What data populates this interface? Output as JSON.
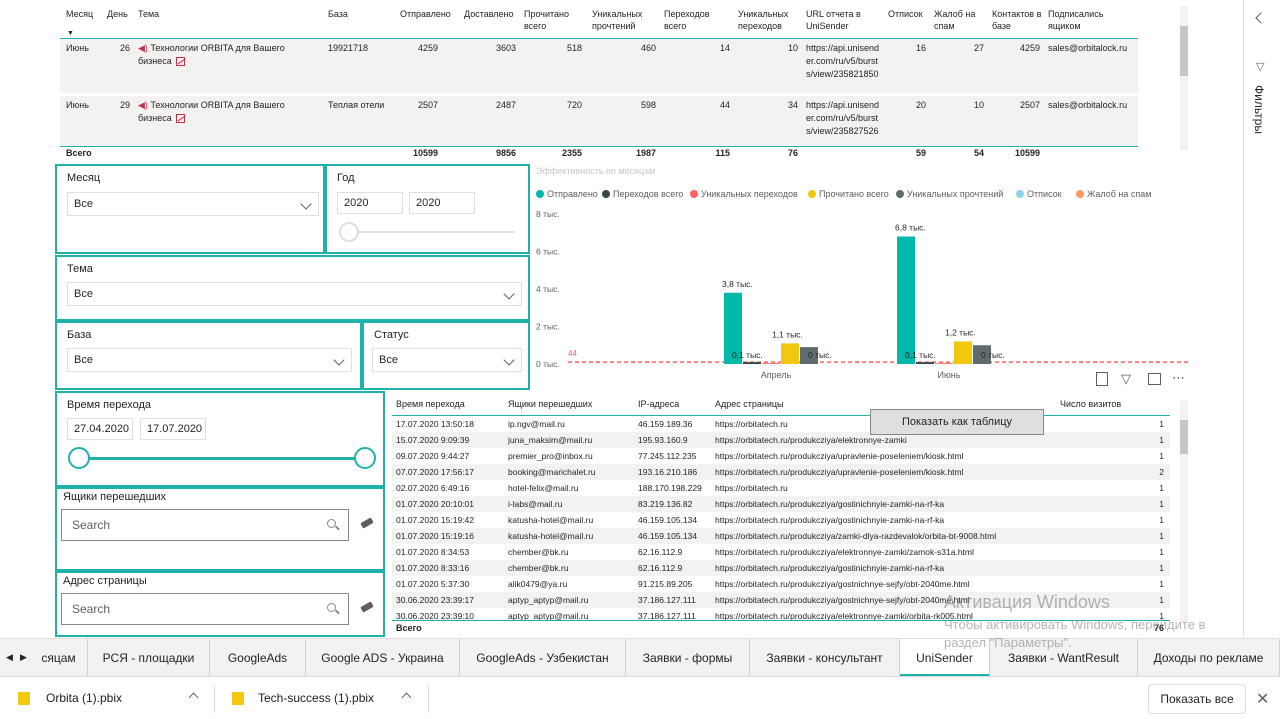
{
  "top_table": {
    "headers": [
      "Месяц",
      "День",
      "Тема",
      "База",
      "Отправлено",
      "Доставлено",
      "Прочитано всего",
      "Уникальных прочтений",
      "Переходов всего",
      "Уникальных переходов",
      "URL отчета в UniSender",
      "Отписок",
      "Жалоб на спам",
      "Контактов в базе",
      "Подписались ящиком"
    ],
    "rows": [
      {
        "month": "Июнь",
        "day": "26",
        "topic": "Технологии ORBITA для Вашего бизнеса",
        "base": "19921718",
        "sent": "4259",
        "delivered": "3603",
        "read_total": "518",
        "unique_reads": "460",
        "clicks_total": "14",
        "unique_clicks": "10",
        "url": "https://api.unisender.com/ru/v5/bursts/view/235821850",
        "unsub": "16",
        "spam": "27",
        "contacts": "4259",
        "subscribed": "sales@orbitalock.ru"
      },
      {
        "month": "Июнь",
        "day": "29",
        "topic": "Технологии ORBITA для Вашего бизнеса",
        "base": "Теплая отели",
        "sent": "2507",
        "delivered": "2487",
        "read_total": "720",
        "unique_reads": "598",
        "clicks_total": "44",
        "unique_clicks": "34",
        "url": "https://api.unisender.com/ru/v5/bursts/view/235827526",
        "unsub": "20",
        "spam": "10",
        "contacts": "2507",
        "subscribed": "sales@orbitalock.ru"
      }
    ],
    "totals": {
      "label": "Всего",
      "sent": "10599",
      "delivered": "9856",
      "read_total": "2355",
      "unique_reads": "1987",
      "clicks_total": "115",
      "unique_clicks": "76",
      "unsub": "59",
      "spam": "54",
      "contacts": "10599"
    }
  },
  "slicers": {
    "month": {
      "title": "Месяц",
      "value": "Все"
    },
    "year": {
      "title": "Год",
      "from": "2020",
      "to": "2020"
    },
    "topic": {
      "title": "Тема",
      "value": "Все"
    },
    "base": {
      "title": "База",
      "value": "Все"
    },
    "status": {
      "title": "Статус",
      "value": "Все"
    },
    "click_time": {
      "title": "Время перехода",
      "from": "27.04.2020",
      "to": "17.07.2020"
    },
    "mailboxes": {
      "title": "Ящики перешедших",
      "placeholder": "Search"
    },
    "page_address": {
      "title": "Адрес страницы",
      "placeholder": "Search"
    }
  },
  "chart_data": {
    "type": "bar",
    "title": "Эффективность по месяцам",
    "categories": [
      "Апрель",
      "Июнь"
    ],
    "series": [
      {
        "name": "Отправлено",
        "color": "#01b8aa",
        "values": [
          3800,
          6800
        ]
      },
      {
        "name": "Переходов всего",
        "color": "#374649",
        "values": [
          100,
          100
        ]
      },
      {
        "name": "Уникальных переходов",
        "color": "#fd625e",
        "values": [
          44,
          44
        ]
      },
      {
        "name": "Прочитано всего",
        "color": "#f2c80f",
        "values": [
          1100,
          1200
        ]
      },
      {
        "name": "Уникальных прочтений",
        "color": "#5f6b6d",
        "values": [
          900,
          1000
        ]
      },
      {
        "name": "Отписок",
        "color": "#8ad4eb",
        "values": [
          0,
          0
        ]
      },
      {
        "name": "Жалоб на спам",
        "color": "#fe9666",
        "values": [
          0,
          0
        ]
      }
    ],
    "data_labels": {
      "Апрель": [
        "3,8 тыс.",
        "0,1 тыс.",
        "1,1 тыс.",
        "0 тыс."
      ],
      "Июнь": [
        "6,8 тыс.",
        "0,1 тыс.",
        "1,2 тыс.",
        "0 тыс."
      ]
    },
    "y_ticks": [
      "0 тыс.",
      "2 тыс.",
      "4 тыс.",
      "6 тыс.",
      "8 тыс."
    ],
    "ylim": [
      0,
      8000
    ],
    "ref_line_label": "44",
    "grid": false,
    "legend_position": "top-left"
  },
  "bottom_table": {
    "headers": [
      "Время перехода",
      "Ящики перешедших",
      "IP-адреса",
      "Адрес страницы",
      "Число визитов"
    ],
    "rows": [
      [
        "17.07.2020 13:50:18",
        "ip.ngv@mail.ru",
        "46.159.189.36",
        "https://orbitatech.ru",
        "1"
      ],
      [
        "15.07.2020 9:09:39",
        "juna_maksim@mail.ru",
        "195.93.160.9",
        "https://orbitatech.ru/produkcziya/elektronnye-zamki",
        "1"
      ],
      [
        "09.07.2020 9:44:27",
        "premier_pro@inbox.ru",
        "77.245.112.235",
        "https://orbitatech.ru/produkcziya/upravlenie-poseleniem/kiosk.html",
        "1"
      ],
      [
        "07.07.2020 17:56:17",
        "booking@marichalet.ru",
        "193.16.210.186",
        "https://orbitatech.ru/produkcziya/upravlenie-poseleniem/kiosk.html",
        "2"
      ],
      [
        "02.07.2020 6:49:16",
        "hotel-felix@mail.ru",
        "188.170.198.229",
        "https://orbitatech.ru",
        "1"
      ],
      [
        "01.07.2020 20:10:01",
        "i-labs@mail.ru",
        "83.219.136.82",
        "https://orbitatech.ru/produkcziya/gostinichnyie-zamki-na-rf-ka",
        "1"
      ],
      [
        "01.07.2020 15:19:42",
        "katusha-hotel@mail.ru",
        "46.159.105.134",
        "https://orbitatech.ru/produkcziya/gostinichnyie-zamki-na-rf-ka",
        "1"
      ],
      [
        "01.07.2020 15:19:16",
        "katusha-hotel@mail.ru",
        "46.159.105.134",
        "https://orbitatech.ru/produkcziya/zamki-dlya-razdevalok/orbita-bt-9008.html",
        "1"
      ],
      [
        "01.07.2020 8:34:53",
        "chember@bk.ru",
        "62.16.112.9",
        "https://orbitatech.ru/produkcziya/elektronnye-zamki/zamok-s31a.html",
        "1"
      ],
      [
        "01.07.2020 8:33:16",
        "chember@bk.ru",
        "62.16.112.9",
        "https://orbitatech.ru/produkcziya/gostinichnyie-zamki-na-rf-ka",
        "1"
      ],
      [
        "01.07.2020 5:37:30",
        "alik0479@ya.ru",
        "91.215.89.205",
        "https://orbitatech.ru/produkcziya/gostnichnye-sejfy/obt-2040me.html",
        "1"
      ],
      [
        "30.06.2020 23:39:17",
        "aptyp_aptyp@mail.ru",
        "37.186.127.111",
        "https://orbitatech.ru/produkcziya/gostnichnye-sejfy/obt-2040me.html",
        "1"
      ],
      [
        "30.06.2020 23:39:10",
        "aptyp_aptyp@mail.ru",
        "37.186.127.111",
        "https://orbitatech.ru/produkcziya/elektronnye-zamki/orbita-rk005.html",
        "1"
      ]
    ],
    "total_label": "Всего",
    "total_value": "76"
  },
  "context_menu": {
    "label": "Показать как таблицу"
  },
  "filters_pane": {
    "label": "Фильтры"
  },
  "tabs": [
    "сяцам",
    "РСЯ - площадки",
    "GoogleAds",
    "Google ADS - Украина",
    "GoogleAds - Узбекистан",
    "Заявки - формы",
    "Заявки - консультант",
    "UniSender",
    "Заявки - WantResult",
    "Доходы по рекламе"
  ],
  "active_tab": "UniSender",
  "downloads": {
    "items": [
      "Orbita (1).pbix",
      "Tech-success (1).pbix"
    ],
    "show_all": "Показать все"
  },
  "watermark": {
    "title": "Активация Windows",
    "text": "Чтобы активировать Windows, перейдите в раздел \"Параметры\"."
  }
}
